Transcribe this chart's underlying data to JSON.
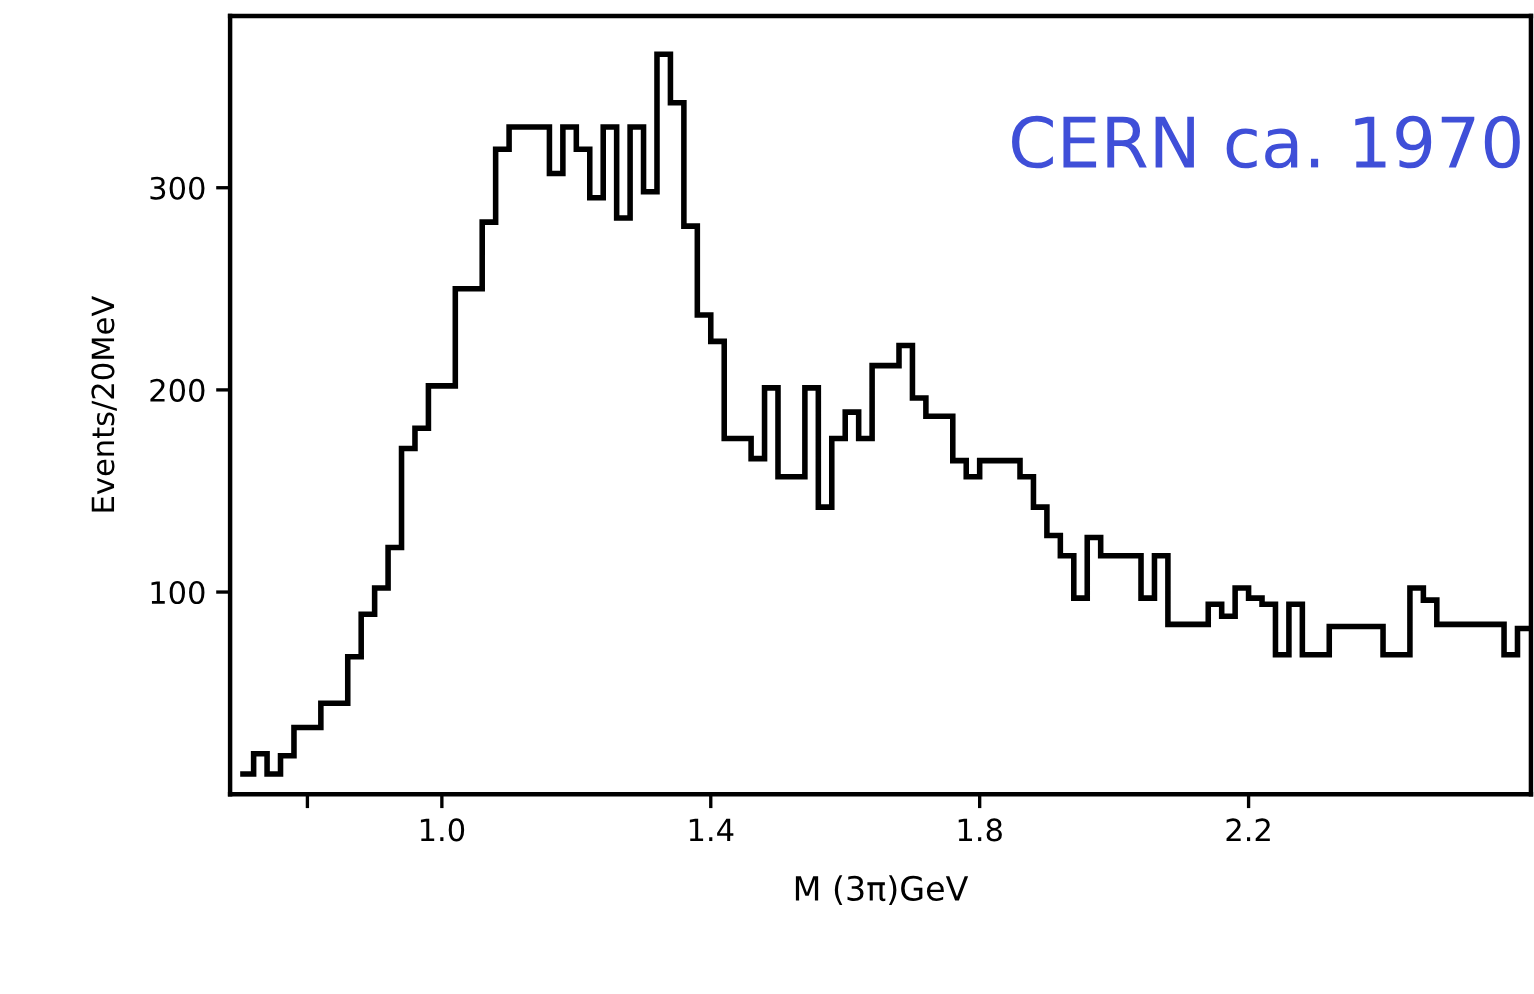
{
  "chart_data": {
    "type": "histogram",
    "xlabel": "M (3π)GeV",
    "ylabel": "Events/20MeV",
    "annotations": [
      "CERN ca. 1970"
    ],
    "bins": [
      0.7,
      0.72,
      0.74,
      0.76,
      0.78,
      0.8,
      0.82,
      0.84,
      0.86,
      0.88,
      0.9,
      0.92,
      0.94,
      0.96,
      0.98,
      1.0,
      1.02,
      1.04,
      1.06,
      1.08,
      1.1,
      1.12,
      1.14,
      1.16,
      1.18,
      1.2,
      1.22,
      1.24,
      1.26,
      1.28,
      1.3,
      1.32,
      1.34,
      1.36,
      1.38,
      1.4,
      1.42,
      1.44,
      1.46,
      1.48,
      1.5,
      1.52,
      1.54,
      1.56,
      1.58,
      1.6,
      1.62,
      1.64,
      1.66,
      1.68,
      1.7,
      1.72,
      1.74,
      1.76,
      1.78,
      1.8,
      1.82,
      1.84,
      1.86,
      1.88,
      1.9,
      1.92,
      1.94,
      1.96,
      1.98,
      2.0,
      2.02,
      2.04,
      2.06,
      2.08,
      2.1,
      2.12,
      2.14,
      2.16,
      2.18,
      2.2,
      2.22,
      2.24,
      2.26,
      2.28,
      2.3,
      2.32,
      2.34,
      2.36,
      2.38,
      2.4,
      2.42,
      2.44,
      2.46,
      2.48,
      2.5,
      2.52,
      2.54,
      2.56,
      2.58,
      2.6,
      2.62
    ],
    "values": [
      10,
      20,
      10,
      19,
      33,
      33,
      45,
      45,
      68,
      89,
      102,
      122,
      171,
      181,
      202,
      202,
      250,
      250,
      283,
      319,
      330,
      330,
      330,
      307,
      330,
      319,
      295,
      330,
      285,
      330,
      298,
      366,
      342,
      281,
      237,
      224,
      176,
      176,
      166,
      201,
      157,
      157,
      201,
      142,
      176,
      189,
      176,
      212,
      212,
      222,
      196,
      187,
      187,
      165,
      157,
      165,
      165,
      165,
      157,
      142,
      128,
      118,
      97,
      127,
      118,
      118,
      118,
      97,
      118,
      84,
      84,
      84,
      94,
      88,
      102,
      97,
      94,
      69,
      94,
      69,
      69,
      83,
      83,
      83,
      83,
      69,
      69,
      102,
      96,
      84,
      84,
      84,
      84,
      84,
      69,
      82
    ],
    "color": "#000000",
    "xlim": [
      0.685,
      2.62
    ],
    "ylim": [
      0,
      385
    ],
    "xticks": [
      {
        "value": 0.8,
        "label": null
      },
      {
        "value": 1.0,
        "label": "1.0"
      },
      {
        "value": 1.4,
        "label": "1.4"
      },
      {
        "value": 1.8,
        "label": "1.8"
      },
      {
        "value": 2.2,
        "label": "2.2"
      }
    ],
    "yticks": [
      100,
      200,
      300
    ],
    "grid": false,
    "legend": false
  }
}
